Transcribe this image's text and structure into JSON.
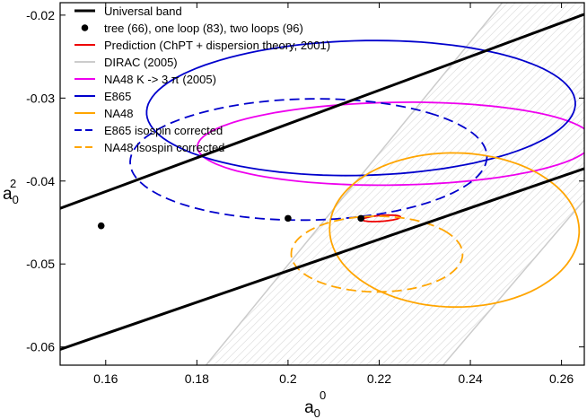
{
  "chart_data": {
    "type": "line",
    "title": "",
    "xlabel": {
      "base": "a",
      "sub": "0",
      "sup": "0"
    },
    "ylabel": {
      "base": "a",
      "sub": "0",
      "sup": "2"
    },
    "xlim": [
      0.15,
      0.265
    ],
    "ylim": [
      -0.0622,
      -0.0185
    ],
    "xticks": [
      0.16,
      0.18,
      0.2,
      0.22,
      0.24,
      0.26
    ],
    "xtick_labels": [
      "0.16",
      "0.18",
      "0.2",
      "0.22",
      "0.24",
      "0.26"
    ],
    "yticks": [
      -0.06,
      -0.05,
      -0.04,
      -0.03,
      -0.02
    ],
    "ytick_labels": [
      "-0.06",
      "-0.05",
      "-0.04",
      "-0.03",
      "-0.02"
    ],
    "grid": false,
    "legend_position": "top-left",
    "legend": [
      {
        "label": "Universal band",
        "color": "#000000",
        "style": "line-thick"
      },
      {
        "label": "tree (66), one loop (83), two loops (96)",
        "color": "#000000",
        "style": "dot"
      },
      {
        "label": "Prediction (ChPT + dispersion theory, 2001)",
        "color": "#ee0000",
        "style": "line"
      },
      {
        "label": "DIRAC (2005)",
        "color": "#cccccc",
        "style": "line"
      },
      {
        "label": "NA48 K -> 3 π (2005)",
        "color": "#ee00ee",
        "style": "line"
      },
      {
        "label": "E865",
        "color": "#0000cc",
        "style": "line"
      },
      {
        "label": "NA48",
        "color": "#ffa500",
        "style": "line"
      },
      {
        "label": "E865 isospin corrected",
        "color": "#0000cc",
        "style": "dashed"
      },
      {
        "label": "NA48 isospin corrected",
        "color": "#ffa500",
        "style": "dashed"
      }
    ],
    "universal_band": {
      "upper": [
        [
          0.15,
          -0.0433
        ],
        [
          0.265,
          -0.0199
        ]
      ],
      "lower": [
        [
          0.15,
          -0.0603
        ],
        [
          0.265,
          -0.0385
        ]
      ]
    },
    "points": [
      {
        "x": 0.159,
        "y": -0.0454
      },
      {
        "x": 0.2,
        "y": -0.0445
      },
      {
        "x": 0.216,
        "y": -0.0445
      }
    ],
    "dirac_band": {
      "color": "#cccccc",
      "x_at_bottom": [
        0.182,
        0.234
      ],
      "x_at_top": [
        0.247,
        0.302
      ]
    },
    "ellipses": [
      {
        "name": "Prediction (ChPT + dispersion theory, 2001)",
        "color": "#ee0000",
        "dashed": false,
        "cx": 0.2205,
        "cy": -0.0445,
        "ex": [
          0.004,
          0.0011
        ],
        "ey": [
          0.00025,
          -0.0003
        ]
      },
      {
        "name": "NA48 K -> 3 π (2005)",
        "color": "#ee00ee",
        "dashed": false,
        "cx": 0.2235,
        "cy": -0.0355,
        "ex": [
          0.0285,
          0.0327
        ],
        "ey": [
          0.004,
          -0.003
        ]
      },
      {
        "name": "E865",
        "color": "#0000cc",
        "dashed": false,
        "cx": 0.216,
        "cy": -0.0312,
        "ex": [
          0.034,
          0.0325
        ],
        "ey": [
          0.006,
          -0.0055
        ]
      },
      {
        "name": "NA48",
        "color": "#ffa500",
        "dashed": false,
        "cx": 0.2365,
        "cy": -0.0459,
        "ex": [
          0.0225,
          0.0156
        ],
        "ey": [
          0.0052,
          -0.0077
        ]
      },
      {
        "name": "E865 isospin corrected",
        "color": "#0000cc",
        "dashed": true,
        "cx": 0.2045,
        "cy": -0.0374,
        "ex": [
          0.0265,
          0.0288
        ],
        "ey": [
          0.0056,
          -0.0047
        ]
      },
      {
        "name": "NA48 isospin corrected",
        "color": "#ffa500",
        "dashed": true,
        "cx": 0.2195,
        "cy": -0.0488,
        "ex": [
          0.0148,
          0.0116
        ],
        "ey": [
          0.0028,
          -0.0036
        ]
      }
    ]
  }
}
